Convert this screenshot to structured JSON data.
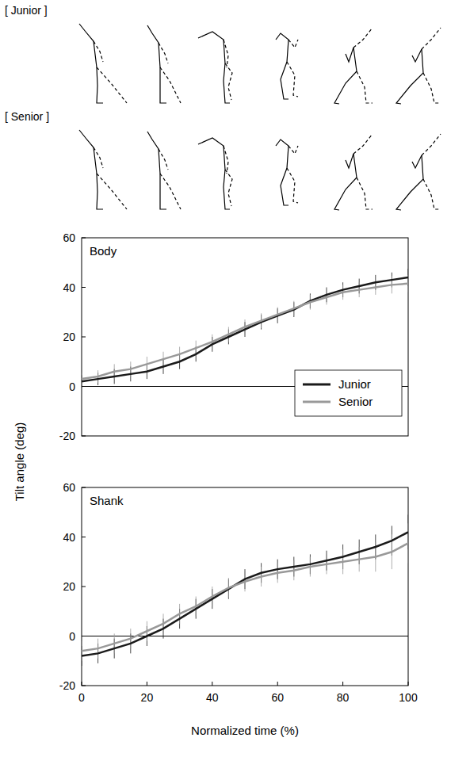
{
  "figures": {
    "rows": [
      {
        "label": "[ Junior ]"
      },
      {
        "label": "[ Senior ]"
      }
    ]
  },
  "chart_data": [
    {
      "type": "line",
      "title": "Body",
      "y_label": "Tilt angle (deg)",
      "x": [
        0,
        5,
        10,
        15,
        20,
        25,
        30,
        35,
        40,
        45,
        50,
        55,
        60,
        65,
        70,
        75,
        80,
        85,
        90,
        95,
        100
      ],
      "xlim": [
        0,
        100
      ],
      "xticks": [
        0,
        20,
        40,
        60,
        80,
        100
      ],
      "ylim": [
        -20,
        60
      ],
      "yticks": [
        -20,
        0,
        20,
        40,
        60
      ],
      "tick_labels": "y",
      "legend": "lower right",
      "series": [
        {
          "name": "Junior",
          "color": "#1a1a1a",
          "values": [
            2,
            3,
            4,
            5,
            6,
            8,
            10,
            13,
            17,
            20,
            23,
            26,
            28.5,
            31,
            34.5,
            37,
            39,
            40.5,
            42,
            43,
            44
          ],
          "errors": [
            2.5,
            2.5,
            3,
            3,
            3,
            3,
            3,
            3,
            3,
            3,
            3,
            3,
            3,
            3,
            3,
            3,
            3,
            3,
            3,
            3,
            3.5
          ]
        },
        {
          "name": "Senior",
          "color": "#999999",
          "values": [
            3,
            4,
            6,
            7,
            9,
            11,
            13,
            15.5,
            18,
            21,
            24,
            26.5,
            29,
            31.5,
            34,
            36,
            38,
            39,
            40,
            41,
            41.5
          ],
          "errors": [
            2.5,
            2.5,
            3,
            3,
            3,
            3,
            3,
            3,
            3,
            3,
            3,
            3,
            3,
            3,
            3,
            3,
            3,
            3,
            3,
            3.5,
            3.5
          ]
        }
      ]
    },
    {
      "type": "line",
      "title": "Shank",
      "x_label": "Normalized time (%)",
      "x": [
        0,
        5,
        10,
        15,
        20,
        25,
        30,
        35,
        40,
        45,
        50,
        55,
        60,
        65,
        70,
        75,
        80,
        85,
        90,
        95,
        100
      ],
      "xlim": [
        0,
        100
      ],
      "xticks": [
        0,
        20,
        40,
        60,
        80,
        100
      ],
      "ylim": [
        -20,
        60
      ],
      "yticks": [
        -20,
        0,
        20,
        40,
        60
      ],
      "tick_labels": true,
      "series": [
        {
          "name": "Junior",
          "color": "#1a1a1a",
          "values": [
            -8,
            -7,
            -5,
            -3,
            0,
            3,
            7,
            11,
            15,
            19,
            23,
            25.5,
            27,
            28,
            29,
            30.5,
            32,
            34,
            36,
            38.5,
            42
          ],
          "errors": [
            4,
            4,
            4,
            4,
            4,
            4,
            4,
            4,
            4,
            4,
            4,
            4,
            4,
            4,
            4,
            4,
            5,
            5,
            5,
            6,
            7
          ]
        },
        {
          "name": "Senior",
          "color": "#999999",
          "values": [
            -6,
            -5,
            -3,
            -1,
            2,
            5,
            9,
            12,
            16,
            19.5,
            22,
            24,
            25.5,
            26.5,
            28,
            29,
            30,
            31,
            32,
            34,
            37.5
          ],
          "errors": [
            4,
            4,
            4,
            4,
            4,
            4,
            4,
            4,
            4,
            4,
            4,
            4,
            4,
            4,
            4,
            4,
            5,
            5,
            6,
            7,
            8
          ]
        }
      ]
    }
  ]
}
